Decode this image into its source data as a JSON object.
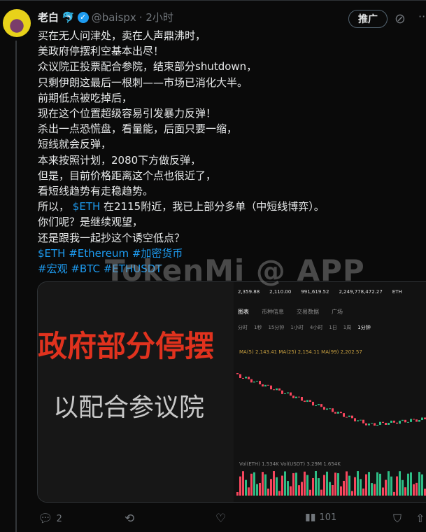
{
  "post": {
    "author": "老白",
    "handle": "@baispx",
    "time": "· 2小时",
    "promote": "推广",
    "lines": [
      "买在无人问津处，卖在人声鼎沸时，",
      "美政府停摆利空基本出尽！",
      "众议院正投票配合参院，结束部分shutdown，",
      "只剩伊朗这最后一根刺——市场已消化大半。",
      "前期低点被吃掉后，",
      "现在这个位置超级容易引发暴力反弹！",
      "杀出一点恐慌盘，看量能，后面只要一缩，",
      "短线就会反弹，",
      "本来按照计划，2080下方做反弹，",
      "但是，目前价格距离这个点也很近了，",
      "看短线趋势有走稳趋势。"
    ],
    "line_cashtag_pre": "所以，",
    "cashtag": "$ETH",
    "line_cashtag_post": " 在2115附近，我已上部分多单（中短线博弈）。",
    "lines2": [
      "你们呢？是继续观望，",
      "还是跟我一起抄这个诱空低点？"
    ],
    "tags1": "$ETH #Ethereum #加密货币",
    "tags2": "#宏观 #BTC #ETHUSDT"
  },
  "watermark": "TokenMi @ APP",
  "media": {
    "left_text_red": "政府部分停摆",
    "left_text_gray": "以配合参议院",
    "chart_stats": [
      "2,359.88",
      "2,110.00",
      "991,619.52",
      "2,249,778,472.27",
      "ETH"
    ],
    "chart_tabs": [
      "图表",
      "币种信息",
      "交易数据",
      "广场"
    ],
    "intervals": [
      "分时",
      "1秒",
      "15分钟",
      "1小时",
      "4小时",
      "1日",
      "1周",
      "1分钟"
    ],
    "ma_line": "MA(5) 2,143.41  MA(25) 2,154.11  MA(99) 2,202.57",
    "vol_line": "Vol(ETH) 1.534K  Vol(USDT) 3.29M  1.654K"
  },
  "actions": {
    "replies": "2",
    "views": "101"
  },
  "colors": {
    "accent": "#1d9bf0",
    "up": "#2ebd85",
    "down": "#f6465d"
  }
}
